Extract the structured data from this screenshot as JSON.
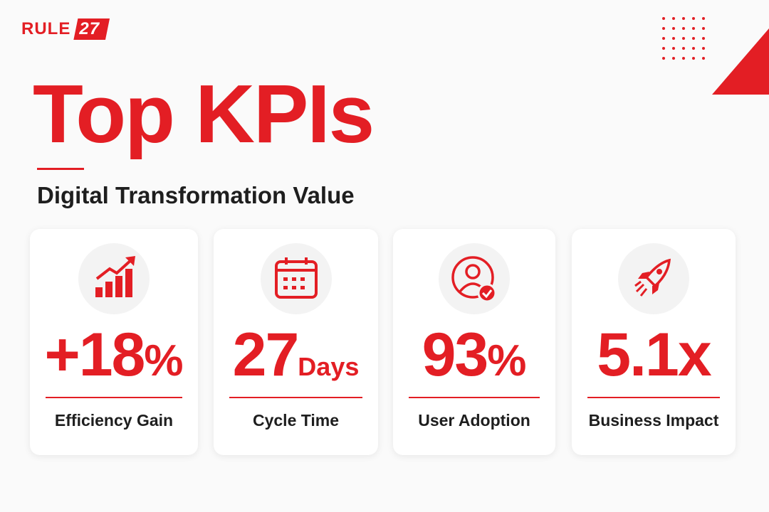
{
  "logo": {
    "text": "RULE",
    "badge": "27"
  },
  "header": {
    "title": "Top KPIs",
    "subtitle": "Digital Transformation Value"
  },
  "cards": [
    {
      "value": "+18",
      "unit": "%",
      "label": "Efficiency Gain"
    },
    {
      "value": "27",
      "unit": "Days",
      "label": "Cycle Time"
    },
    {
      "value": "93",
      "unit": "%",
      "label": "User Adoption"
    },
    {
      "value": "5.1x",
      "label": "Business Impact"
    }
  ]
}
